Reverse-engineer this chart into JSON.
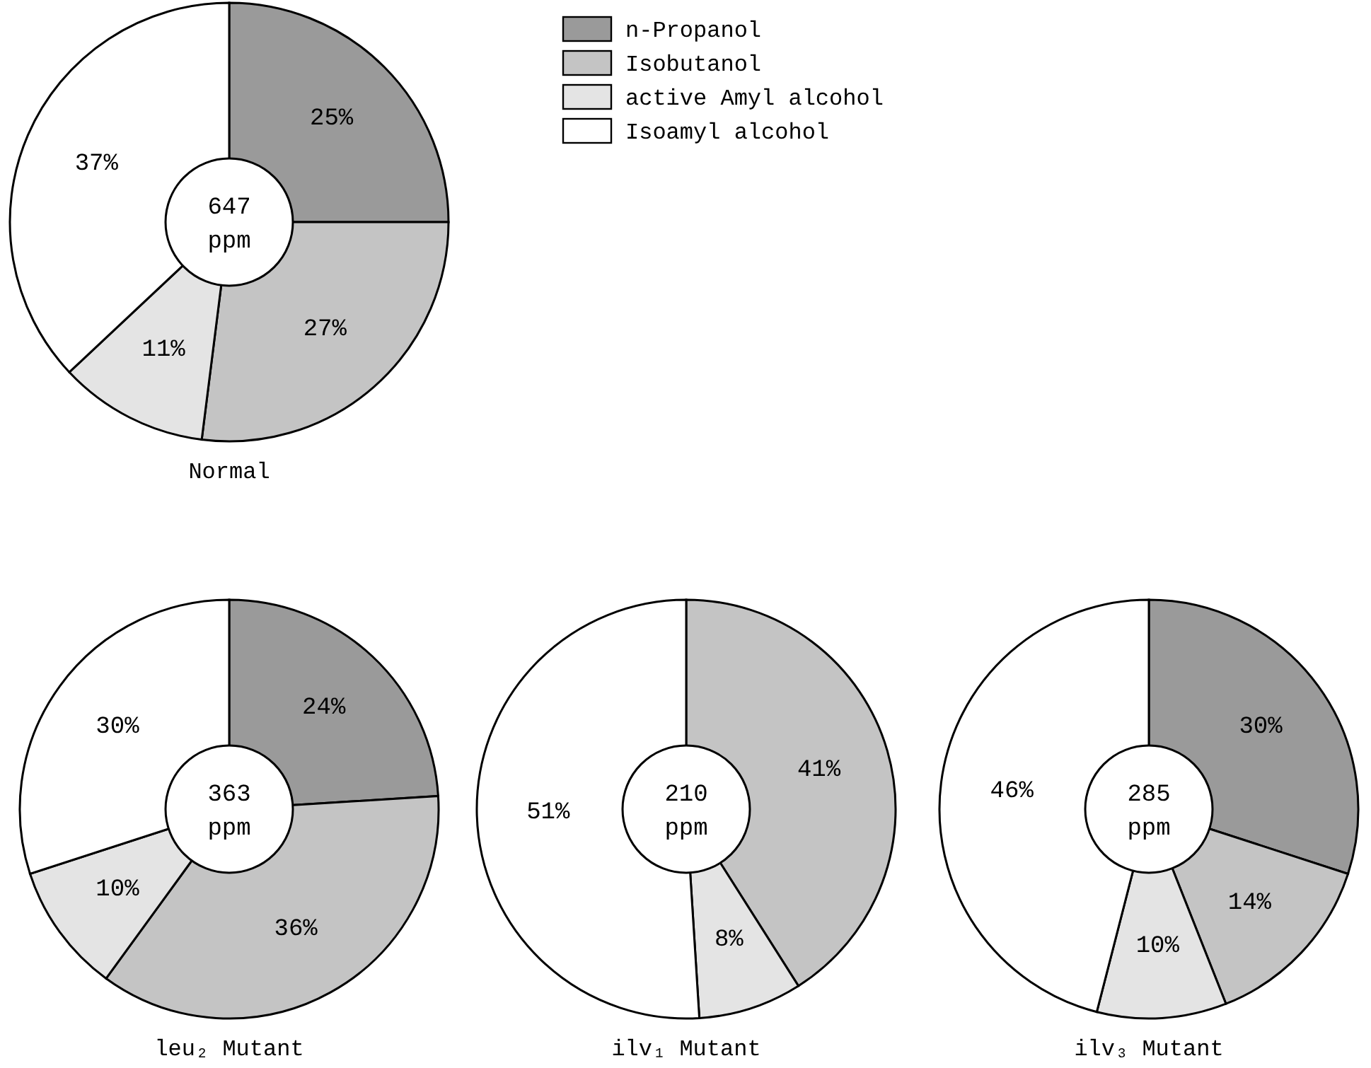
{
  "chart_data": [
    {
      "type": "donut",
      "title": "Normal",
      "categories": [
        "n-Propanol",
        "Isobutanol",
        "active Amyl alcohol",
        "Isoamyl alcohol"
      ],
      "values": [
        25,
        27,
        11,
        37
      ],
      "value_labels": [
        "25%",
        "27%",
        "11%",
        "37%"
      ],
      "colors": [
        "#9a9a9a",
        "#c4c4c4",
        "#e4e4e4",
        "#ffffff"
      ],
      "annotations": [
        "647 ppm"
      ],
      "legend": "top right"
    },
    {
      "type": "donut",
      "title": "leu₂ Mutant",
      "categories": [
        null,
        null,
        null,
        null
      ],
      "values": [
        24,
        36,
        10,
        30
      ],
      "value_labels": [
        "24%",
        "36%",
        "10%",
        "30%"
      ],
      "colors": [
        "#9a9a9a",
        "#c4c4c4",
        "#e4e4e4",
        "#ffffff"
      ],
      "annotations": [
        "363 ppm"
      ]
    },
    {
      "type": "donut",
      "title": "ilv₁ Mutant",
      "categories": [
        null,
        null,
        null
      ],
      "values": [
        41,
        8,
        51
      ],
      "value_labels": [
        "41%",
        "8%",
        "51%"
      ],
      "colors": [
        "#c4c4c4",
        "#e4e4e4",
        "#ffffff"
      ],
      "annotations": [
        "210 ppm"
      ]
    },
    {
      "type": "donut",
      "title": "ilv₃ Mutant",
      "categories": [
        null,
        null,
        null,
        null
      ],
      "values": [
        30,
        14,
        10,
        46
      ],
      "value_labels": [
        "30%",
        "14%",
        "10%",
        "46%"
      ],
      "colors": [
        "#9a9a9a",
        "#c4c4c4",
        "#e4e4e4",
        "#ffffff"
      ],
      "annotations": [
        "285 ppm"
      ]
    }
  ]
}
